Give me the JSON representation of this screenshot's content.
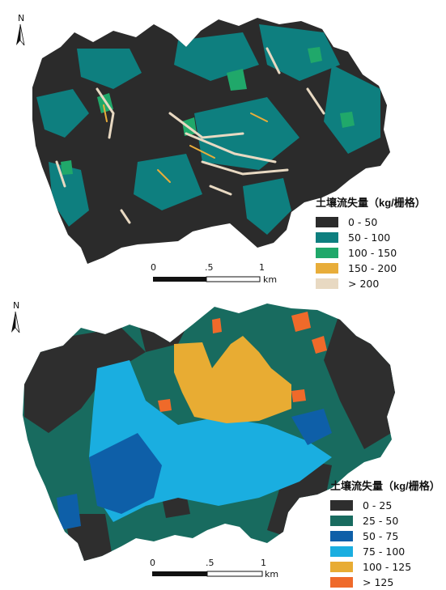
{
  "maps": [
    {
      "legend": {
        "title": "土壤流失量（kg/栅格）",
        "items": [
          {
            "label": "0 - 50",
            "color": "#2b2b2b"
          },
          {
            "label": "50 - 100",
            "color": "#0e7f7f"
          },
          {
            "label": "100 - 150",
            "color": "#20a86a"
          },
          {
            "label": "150 - 200",
            "color": "#e8ad3a"
          },
          {
            "label": "> 200",
            "color": "#e8d9c2"
          }
        ]
      },
      "north_label": "N",
      "scale": {
        "ticks": [
          "0",
          ".5",
          "1"
        ],
        "unit": "km"
      }
    },
    {
      "legend": {
        "title": "土壤流失量（kg/栅格）",
        "items": [
          {
            "label": "0 - 25",
            "color": "#2e2e2e"
          },
          {
            "label": "25 - 50",
            "color": "#186b5f"
          },
          {
            "label": "50 - 75",
            "color": "#0e5fa8"
          },
          {
            "label": "75 - 100",
            "color": "#1aaee0"
          },
          {
            "label": "100 - 125",
            "color": "#e8ac33"
          },
          {
            "label": "> 125",
            "color": "#ef6a2a"
          }
        ]
      },
      "north_label": "N",
      "scale": {
        "ticks": [
          "0",
          ".5",
          "1"
        ],
        "unit": "km"
      }
    }
  ]
}
